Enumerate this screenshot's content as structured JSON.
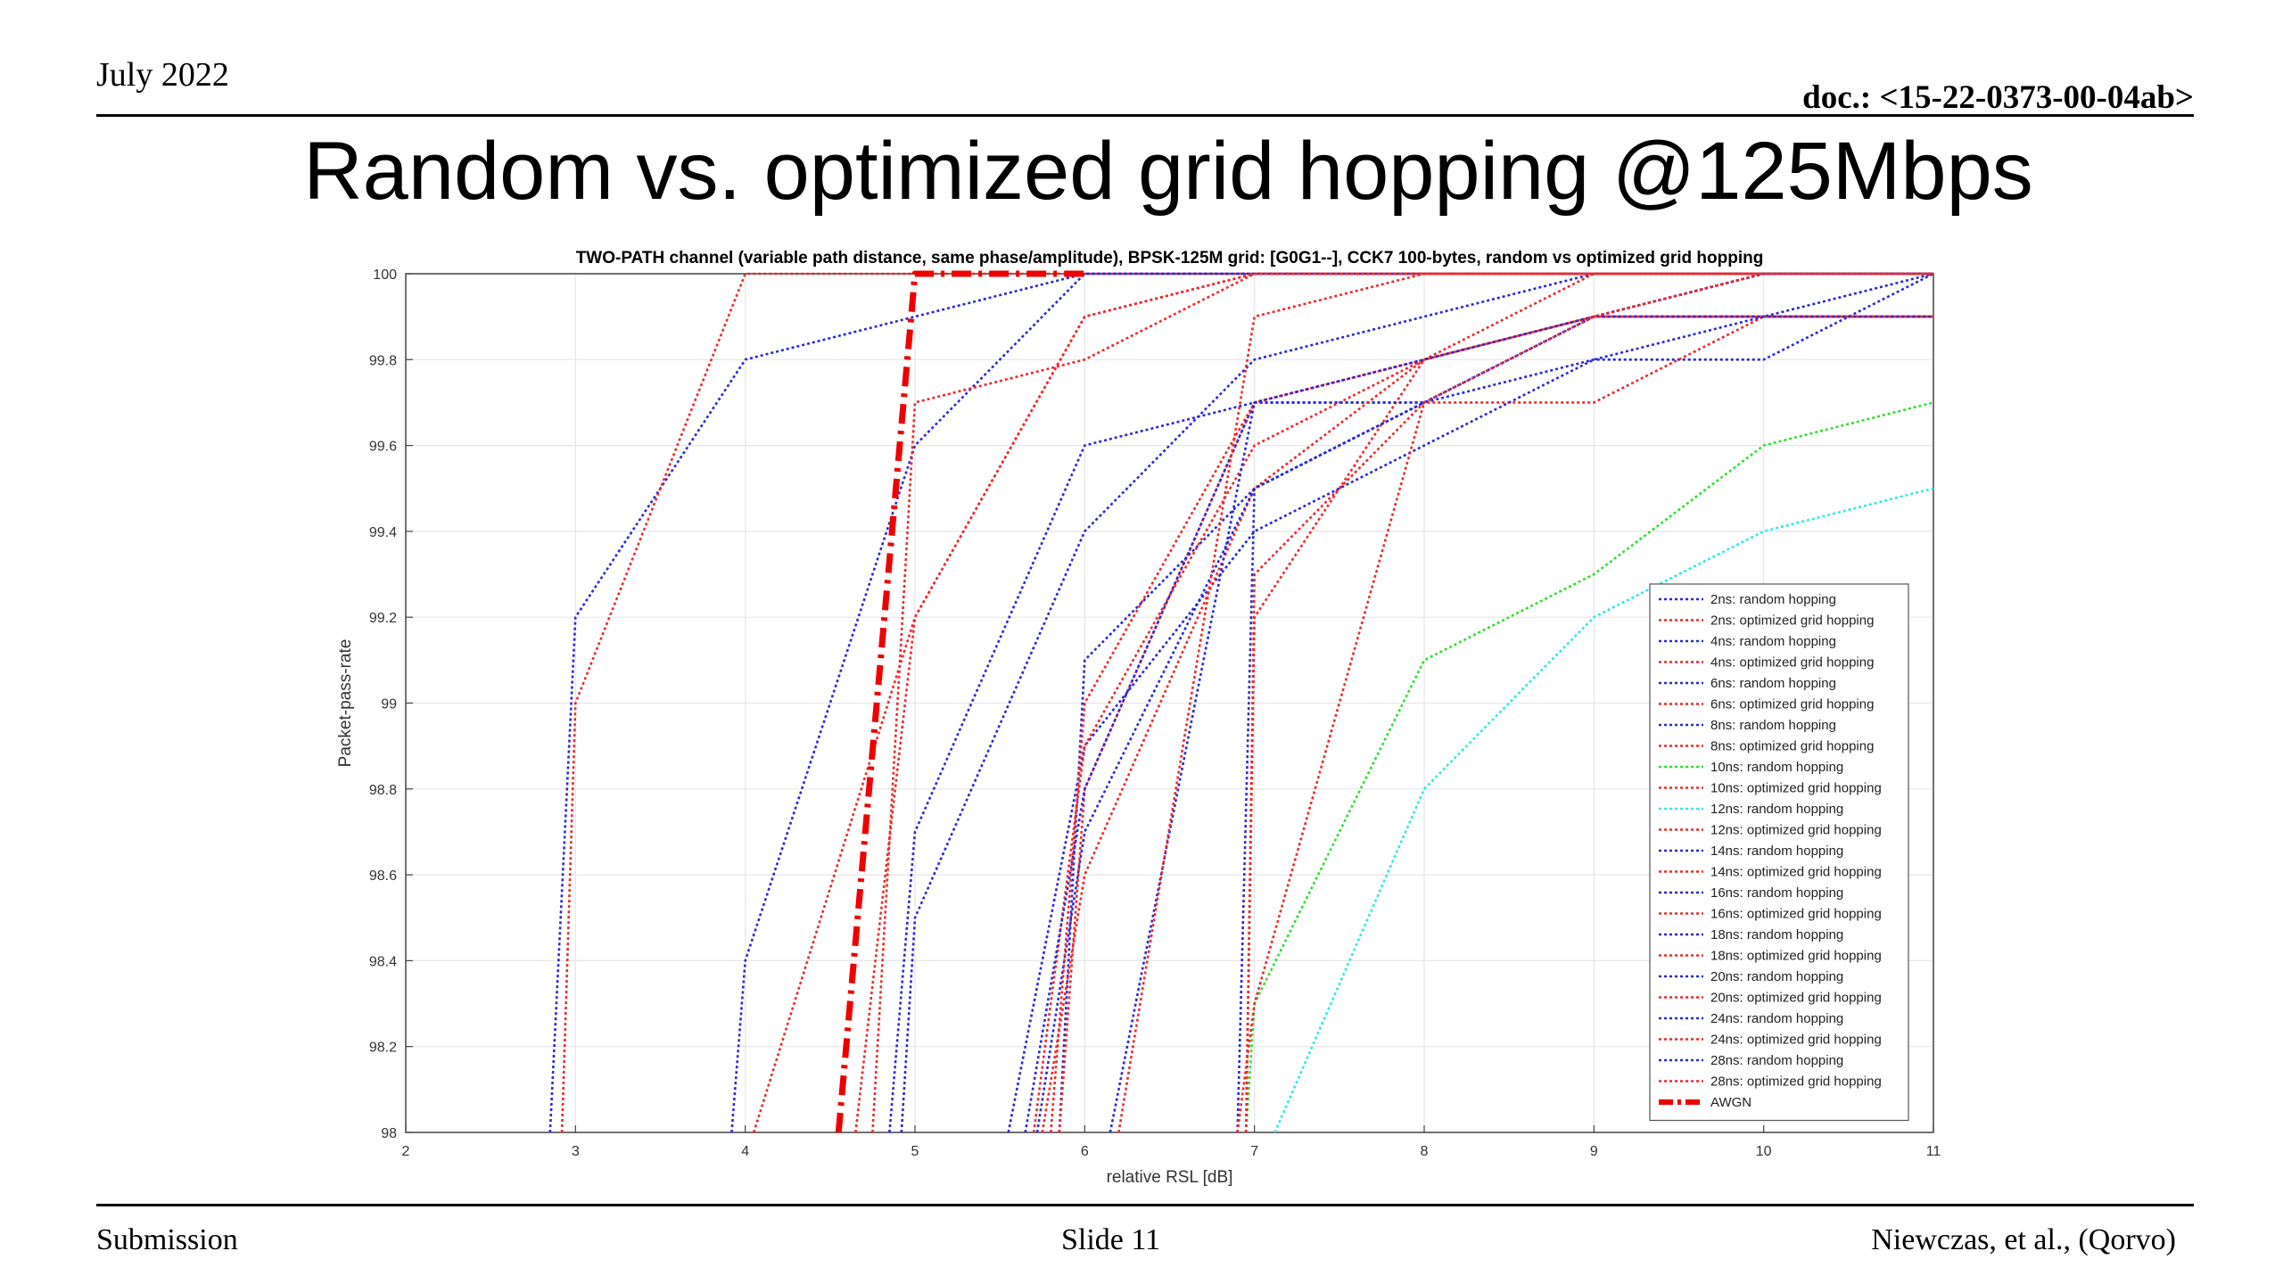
{
  "header": {
    "date": "July 2022",
    "doc": "doc.: <15-22-0373-00-04ab>"
  },
  "slide_title": "Random vs. optimized grid hopping @125Mbps",
  "footer": {
    "left": "Submission",
    "center": "Slide 11",
    "right": "Niewczas, et al., (Qorvo)"
  },
  "colors": {
    "blue": "#2a2ad8",
    "red": "#ee2a2a",
    "green": "#33dd33",
    "cyan": "#33e8e8",
    "awgn": "#ee0000"
  },
  "chart_data": {
    "type": "line",
    "title": "TWO-PATH channel (variable path distance, same phase/amplitude), BPSK-125M grid: [G0G1--], CCK7 100-bytes, random vs optimized grid hopping",
    "xlabel": "relative RSL [dB]",
    "ylabel": "Packet-pass-rate",
    "xlim": [
      2,
      11
    ],
    "ylim": [
      98,
      100
    ],
    "xticks": [
      "2",
      "3",
      "4",
      "5",
      "6",
      "7",
      "8",
      "9",
      "10",
      "11"
    ],
    "yticks": [
      "98",
      "98.2",
      "98.4",
      "98.6",
      "98.8",
      "99",
      "99.2",
      "99.4",
      "99.6",
      "99.8",
      "100"
    ],
    "grid": true,
    "legend_position": "bottom-right",
    "series": [
      {
        "name": "2ns: random hopping",
        "color": "blue",
        "dash": "dotted",
        "x": [
          2.85,
          3,
          4,
          5,
          6,
          7,
          8,
          9,
          10,
          11
        ],
        "y": [
          98,
          99.2,
          99.8,
          99.9,
          100,
          100,
          100,
          100,
          100,
          100
        ]
      },
      {
        "name": "2ns: optimized grid hopping",
        "color": "red",
        "dash": "dotted",
        "x": [
          2.92,
          3,
          4,
          5,
          6,
          7,
          8,
          9,
          10,
          11
        ],
        "y": [
          98,
          99,
          100,
          100,
          100,
          100,
          100,
          100,
          100,
          100
        ]
      },
      {
        "name": "4ns: random hopping",
        "color": "blue",
        "dash": "dotted",
        "x": [
          3.92,
          4,
          5,
          6,
          7,
          8,
          9,
          10,
          11
        ],
        "y": [
          98,
          98.4,
          99.6,
          100,
          100,
          100,
          100,
          100,
          100
        ]
      },
      {
        "name": "4ns: optimized grid hopping",
        "color": "red",
        "dash": "dotted",
        "x": [
          4.05,
          5,
          6,
          7,
          8,
          9,
          10,
          11
        ],
        "y": [
          98,
          99.2,
          99.9,
          100,
          100,
          100,
          100,
          100
        ]
      },
      {
        "name": "6ns: random hopping",
        "color": "blue",
        "dash": "dotted",
        "x": [
          4.85,
          5,
          6,
          7,
          8,
          9,
          10,
          11
        ],
        "y": [
          98,
          98.7,
          99.6,
          99.7,
          99.7,
          99.8,
          99.8,
          100
        ]
      },
      {
        "name": "6ns: optimized grid hopping",
        "color": "red",
        "dash": "dotted",
        "x": [
          4.75,
          5,
          6,
          7,
          8,
          9,
          10,
          11
        ],
        "y": [
          98,
          99.7,
          99.8,
          100,
          100,
          100,
          100,
          100
        ]
      },
      {
        "name": "8ns: random hopping",
        "color": "blue",
        "dash": "dotted",
        "x": [
          4.92,
          5,
          6,
          7,
          8,
          9,
          10,
          11
        ],
        "y": [
          98,
          98.5,
          99.4,
          99.8,
          99.9,
          100,
          100,
          100
        ]
      },
      {
        "name": "8ns: optimized grid hopping",
        "color": "red",
        "dash": "dotted",
        "x": [
          4.65,
          5,
          6,
          7,
          8,
          9,
          10,
          11
        ],
        "y": [
          98,
          99.2,
          99.9,
          100,
          100,
          100,
          100,
          100
        ]
      },
      {
        "name": "10ns: random hopping",
        "color": "green",
        "dash": "dotted",
        "x": [
          6.95,
          7,
          8,
          9,
          10,
          11
        ],
        "y": [
          98,
          98.3,
          99.1,
          99.3,
          99.6,
          99.7
        ]
      },
      {
        "name": "10ns: optimized grid hopping",
        "color": "red",
        "dash": "dotted",
        "x": [
          6.95,
          7,
          8,
          9,
          10,
          11
        ],
        "y": [
          98,
          99.2,
          99.8,
          100,
          100,
          100
        ]
      },
      {
        "name": "12ns: random hopping",
        "color": "cyan",
        "dash": "dotted",
        "x": [
          7.12,
          8,
          9,
          10,
          11
        ],
        "y": [
          98,
          98.8,
          99.2,
          99.4,
          99.5
        ]
      },
      {
        "name": "12ns: optimized grid hopping",
        "color": "red",
        "dash": "dotted",
        "x": [
          6.95,
          7,
          8,
          9,
          10,
          11
        ],
        "y": [
          98,
          99.3,
          99.7,
          99.7,
          99.9,
          99.9
        ]
      },
      {
        "name": "14ns: random hopping",
        "color": "blue",
        "dash": "dotted",
        "x": [
          5.85,
          6,
          7,
          8,
          9,
          10,
          11
        ],
        "y": [
          98,
          99.1,
          99.5,
          99.7,
          99.9,
          100,
          100
        ]
      },
      {
        "name": "14ns: optimized grid hopping",
        "color": "red",
        "dash": "dotted",
        "x": [
          5.85,
          6,
          7,
          8,
          9,
          10,
          11
        ],
        "y": [
          98,
          98.8,
          99.7,
          99.8,
          99.9,
          99.9,
          99.9
        ]
      },
      {
        "name": "16ns: random hopping",
        "color": "blue",
        "dash": "dotted",
        "x": [
          5.55,
          6,
          7,
          8,
          9,
          10,
          11
        ],
        "y": [
          98,
          98.9,
          99.4,
          99.6,
          99.8,
          99.9,
          100
        ]
      },
      {
        "name": "16ns: optimized grid hopping",
        "color": "red",
        "dash": "dotted",
        "x": [
          5.7,
          6,
          7,
          8,
          9,
          10,
          11
        ],
        "y": [
          98,
          98.9,
          99.6,
          99.8,
          99.9,
          100,
          100
        ]
      },
      {
        "name": "18ns: random hopping",
        "color": "blue",
        "dash": "dotted",
        "x": [
          5.65,
          6,
          7,
          8,
          9,
          10,
          11
        ],
        "y": [
          98,
          98.8,
          99.7,
          99.7,
          99.9,
          99.9,
          99.9
        ]
      },
      {
        "name": "18ns: optimized grid hopping",
        "color": "red",
        "dash": "dotted",
        "x": [
          5.75,
          6,
          7,
          8,
          9,
          10,
          11
        ],
        "y": [
          98,
          98.6,
          99.5,
          99.8,
          99.9,
          99.9,
          99.9
        ]
      },
      {
        "name": "20ns: random hopping",
        "color": "blue",
        "dash": "dotted",
        "x": [
          5.72,
          6,
          7,
          8,
          9,
          10,
          11
        ],
        "y": [
          98,
          98.7,
          99.5,
          99.7,
          99.9,
          100,
          100
        ]
      },
      {
        "name": "20ns: optimized grid hopping",
        "color": "red",
        "dash": "dotted",
        "x": [
          5.8,
          6,
          7,
          8,
          9,
          10,
          11
        ],
        "y": [
          98,
          99.0,
          99.7,
          99.8,
          99.9,
          99.9,
          99.9
        ]
      },
      {
        "name": "24ns: random hopping",
        "color": "blue",
        "dash": "dotted",
        "x": [
          6.15,
          7,
          8,
          9,
          10,
          11
        ],
        "y": [
          98,
          99.7,
          99.8,
          99.9,
          99.9,
          99.9
        ]
      },
      {
        "name": "24ns: optimized grid hopping",
        "color": "red",
        "dash": "dotted",
        "x": [
          6.2,
          7,
          8,
          9,
          10,
          11
        ],
        "y": [
          98,
          99.9,
          100,
          100,
          100,
          100
        ]
      },
      {
        "name": "28ns: random hopping",
        "color": "blue",
        "dash": "dotted",
        "x": [
          6.9,
          7,
          8,
          9,
          10,
          11
        ],
        "y": [
          98,
          99.5,
          99.7,
          99.9,
          100,
          100
        ]
      },
      {
        "name": "28ns: optimized grid hopping",
        "color": "red",
        "dash": "dotted",
        "x": [
          6.9,
          7,
          8,
          9,
          10,
          11
        ],
        "y": [
          98,
          98.3,
          99.7,
          99.9,
          100,
          100
        ]
      },
      {
        "name": "AWGN",
        "color": "awgn",
        "dash": "dashdot",
        "x": [
          4.55,
          5,
          6
        ],
        "y": [
          98,
          100,
          100
        ]
      }
    ]
  }
}
